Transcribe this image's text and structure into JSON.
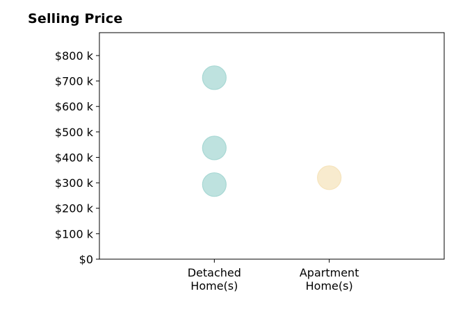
{
  "chart_data": {
    "type": "scatter",
    "title": "Selling Price",
    "categories": [
      "Detached\nHome(s)",
      "Apartment\nHome(s)"
    ],
    "y_tick_labels": [
      "$0",
      "$100 k",
      "$200 k",
      "$300 k",
      "$400 k",
      "$500 k",
      "$600 k",
      "$700 k",
      "$800 k"
    ],
    "y_ticks": [
      0,
      100,
      200,
      300,
      400,
      500,
      600,
      700,
      800
    ],
    "ylim": [
      0,
      890
    ],
    "xlim": [
      0,
      3
    ],
    "grid": false,
    "points": [
      {
        "category": "Detached\nHome(s)",
        "x": 1,
        "value": 713,
        "color": "#a8d8d4"
      },
      {
        "category": "Detached\nHome(s)",
        "x": 1,
        "value": 437,
        "color": "#a8d8d4"
      },
      {
        "category": "Detached\nHome(s)",
        "x": 1,
        "value": 293,
        "color": "#a8d8d4"
      },
      {
        "category": "Apartment\nHome(s)",
        "x": 2,
        "value": 320,
        "color": "#f6e4bd"
      }
    ]
  }
}
